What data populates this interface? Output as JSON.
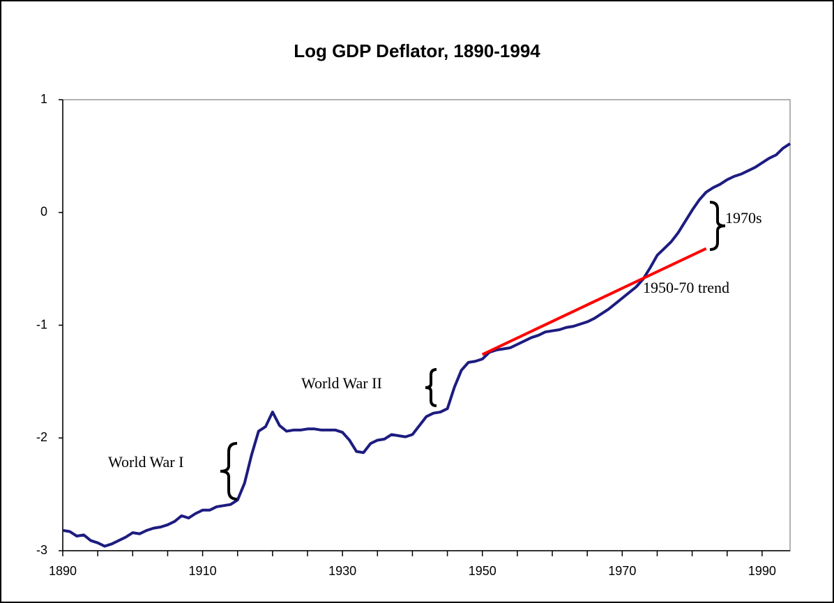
{
  "chart_data": {
    "type": "line",
    "title": "Log GDP Deflator, 1890-1994",
    "xlim": [
      1890,
      1994
    ],
    "ylim": [
      -3,
      1
    ],
    "xticks": [
      1890,
      1910,
      1930,
      1950,
      1970,
      1990
    ],
    "xticks_minor": [
      1895,
      1900,
      1905,
      1915,
      1920,
      1925,
      1935,
      1940,
      1945,
      1955,
      1960,
      1965,
      1975,
      1980,
      1985
    ],
    "yticks": [
      -3,
      -2,
      -1,
      0,
      1
    ],
    "series": [
      {
        "color": "#1c1c80",
        "x": [
          1890,
          1891,
          1892,
          1893,
          1894,
          1895,
          1896,
          1897,
          1898,
          1899,
          1900,
          1901,
          1902,
          1903,
          1904,
          1905,
          1906,
          1907,
          1908,
          1909,
          1910,
          1911,
          1912,
          1913,
          1914,
          1915,
          1916,
          1917,
          1918,
          1919,
          1920,
          1921,
          1922,
          1923,
          1924,
          1925,
          1926,
          1927,
          1928,
          1929,
          1930,
          1931,
          1932,
          1933,
          1934,
          1935,
          1936,
          1937,
          1938,
          1939,
          1940,
          1941,
          1942,
          1943,
          1944,
          1945,
          1946,
          1947,
          1948,
          1949,
          1950,
          1951,
          1952,
          1953,
          1954,
          1955,
          1956,
          1957,
          1958,
          1959,
          1960,
          1961,
          1962,
          1963,
          1964,
          1965,
          1966,
          1967,
          1968,
          1969,
          1970,
          1971,
          1972,
          1973,
          1974,
          1975,
          1976,
          1977,
          1978,
          1979,
          1980,
          1981,
          1982,
          1983,
          1984,
          1985,
          1986,
          1987,
          1988,
          1989,
          1990,
          1991,
          1992,
          1993,
          1994
        ],
        "values": [
          -2.82,
          -2.83,
          -2.87,
          -2.86,
          -2.91,
          -2.93,
          -2.96,
          -2.94,
          -2.91,
          -2.88,
          -2.84,
          -2.85,
          -2.82,
          -2.8,
          -2.79,
          -2.77,
          -2.74,
          -2.69,
          -2.71,
          -2.67,
          -2.64,
          -2.64,
          -2.61,
          -2.6,
          -2.59,
          -2.55,
          -2.4,
          -2.15,
          -1.94,
          -1.9,
          -1.77,
          -1.89,
          -1.94,
          -1.93,
          -1.93,
          -1.92,
          -1.92,
          -1.93,
          -1.93,
          -1.93,
          -1.95,
          -2.02,
          -2.12,
          -2.13,
          -2.05,
          -2.02,
          -2.01,
          -1.97,
          -1.98,
          -1.99,
          -1.97,
          -1.89,
          -1.81,
          -1.78,
          -1.77,
          -1.74,
          -1.55,
          -1.4,
          -1.33,
          -1.32,
          -1.3,
          -1.24,
          -1.22,
          -1.21,
          -1.2,
          -1.17,
          -1.14,
          -1.11,
          -1.09,
          -1.06,
          -1.05,
          -1.04,
          -1.02,
          -1.01,
          -0.99,
          -0.97,
          -0.94,
          -0.9,
          -0.86,
          -0.81,
          -0.76,
          -0.71,
          -0.66,
          -0.59,
          -0.49,
          -0.38,
          -0.32,
          -0.26,
          -0.18,
          -0.08,
          0.02,
          0.11,
          0.18,
          0.22,
          0.25,
          0.29,
          0.32,
          0.34,
          0.37,
          0.4,
          0.44,
          0.48,
          0.51,
          0.57,
          0.61
        ]
      },
      {
        "color": "#ff0000",
        "x": [
          1950,
          1982
        ],
        "values": [
          -1.26,
          -0.32
        ]
      }
    ],
    "annotations": [
      "World War I",
      "World War II",
      "1970s",
      "1950-70 trend"
    ]
  }
}
